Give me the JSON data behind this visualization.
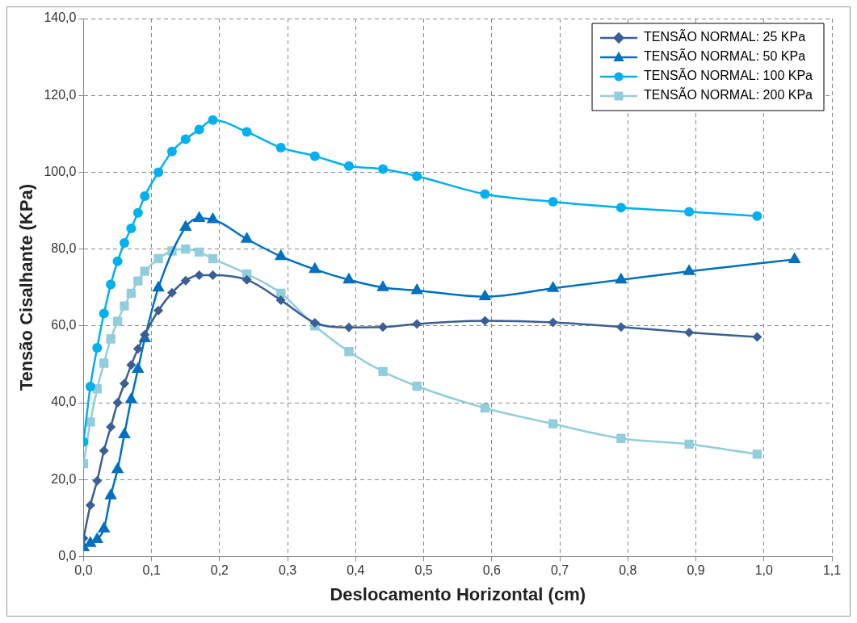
{
  "chart_data": {
    "type": "line",
    "xlabel": "Deslocamento Horizontal (cm)",
    "ylabel": "Tensão Cisalhante (KPa)",
    "xlim": [
      0,
      1.1
    ],
    "xticks": [
      {
        "value": 0,
        "label": "0,0"
      },
      {
        "value": 0.1,
        "label": "0,1"
      },
      {
        "value": 0.2,
        "label": "0,2"
      },
      {
        "value": 0.3,
        "label": "0,3"
      },
      {
        "value": 0.4,
        "label": "0,4"
      },
      {
        "value": 0.5,
        "label": "0,5"
      },
      {
        "value": 0.6,
        "label": "0,6"
      },
      {
        "value": 0.7,
        "label": "0,7"
      },
      {
        "value": 0.8,
        "label": "0,8"
      },
      {
        "value": 0.9,
        "label": "0,9"
      },
      {
        "value": 1,
        "label": "1,0"
      },
      {
        "value": 1.1,
        "label": "1,1"
      }
    ],
    "ylim": [
      0,
      140
    ],
    "yticks": [
      {
        "value": 0,
        "label": "0,0"
      },
      {
        "value": 20,
        "label": "20,0"
      },
      {
        "value": 40,
        "label": "40,0"
      },
      {
        "value": 60,
        "label": "60,0"
      },
      {
        "value": 80,
        "label": "80,0"
      },
      {
        "value": 100,
        "label": "100,0"
      },
      {
        "value": 120,
        "label": "120,0"
      },
      {
        "value": 140,
        "label": "140,0"
      }
    ],
    "grid": true,
    "legend": "top right",
    "line_style": "solid",
    "series": [
      {
        "name": "TENSÃO NORMAL: 25 KPa",
        "color": "#3a5f95",
        "marker": "diamond",
        "x": [
          0,
          0.01,
          0.02,
          0.03,
          0.04,
          0.05,
          0.06,
          0.07,
          0.08,
          0.09,
          0.11,
          0.13,
          0.15,
          0.17,
          0.19,
          0.24,
          0.29,
          0.34,
          0.39,
          0.44,
          0.49,
          0.59,
          0.69,
          0.79,
          0.89,
          0.99
        ],
        "values": [
          4.7,
          13.3,
          19.7,
          27.5,
          33.7,
          40,
          45,
          49.8,
          54,
          57.7,
          64,
          68.6,
          71.8,
          73.2,
          73.2,
          72,
          66.7,
          60.8,
          59.6,
          59.7,
          60.5,
          61.3,
          60.9,
          59.7,
          58.3,
          57.1
        ]
      },
      {
        "name": "TENSÃO NORMAL: 50 KPa",
        "color": "#0070c0",
        "marker": "triangle",
        "x": [
          0,
          0.01,
          0.02,
          0.03,
          0.04,
          0.05,
          0.06,
          0.07,
          0.08,
          0.09,
          0.11,
          0.15,
          0.17,
          0.19,
          0.24,
          0.29,
          0.34,
          0.39,
          0.44,
          0.49,
          0.59,
          0.69,
          0.79,
          0.89,
          1.045
        ],
        "values": [
          2.3,
          3.4,
          4.4,
          7.2,
          15.8,
          22.6,
          31.7,
          40.8,
          48.7,
          56.7,
          69.9,
          85.7,
          88,
          87.7,
          82.6,
          78.1,
          74.7,
          72,
          70,
          69.2,
          67.6,
          69.8,
          72,
          74.2,
          77.3
        ]
      },
      {
        "name": "TENSÃO NORMAL: 100 KPa",
        "color": "#00b0f0",
        "marker": "circle",
        "x": [
          0,
          0.01,
          0.02,
          0.03,
          0.04,
          0.05,
          0.06,
          0.07,
          0.08,
          0.09,
          0.11,
          0.13,
          0.15,
          0.17,
          0.19,
          0.24,
          0.29,
          0.34,
          0.39,
          0.44,
          0.49,
          0.59,
          0.69,
          0.79,
          0.89,
          0.99
        ],
        "values": [
          29.8,
          44.2,
          54.3,
          63.2,
          70.8,
          76.8,
          81.6,
          85.4,
          89.4,
          93.8,
          100,
          105.4,
          108.6,
          111.1,
          113.6,
          110.5,
          106.4,
          104.2,
          101.6,
          100.8,
          99,
          94.3,
          92.3,
          90.8,
          89.7,
          88.6
        ]
      },
      {
        "name": "TENSÃO NORMAL: 200 KPa",
        "color": "#92cddc",
        "marker": "square",
        "x": [
          0,
          0.01,
          0.02,
          0.03,
          0.04,
          0.05,
          0.06,
          0.07,
          0.08,
          0.09,
          0.11,
          0.13,
          0.15,
          0.17,
          0.19,
          0.24,
          0.29,
          0.34,
          0.39,
          0.44,
          0.49,
          0.59,
          0.69,
          0.79,
          0.89,
          0.99
        ],
        "values": [
          24.1,
          35,
          43.6,
          50.3,
          56.6,
          61.2,
          65.2,
          68.5,
          71.7,
          74.2,
          77.5,
          79.5,
          80,
          79.2,
          77.5,
          73.5,
          68.5,
          60,
          53.3,
          48.1,
          44.3,
          38.6,
          34.5,
          30.7,
          29.2,
          26.6
        ]
      }
    ]
  }
}
